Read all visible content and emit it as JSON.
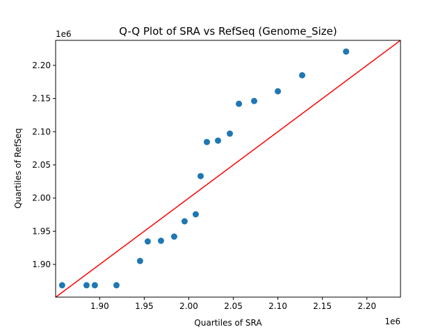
{
  "chart_data": {
    "type": "scatter",
    "title": "Q-Q Plot of SRA vs RefSeq (Genome_Size)",
    "xlabel": "Quartiles of SRA",
    "ylabel": "Quartiles of RefSeq",
    "x_offset_label": "1e6",
    "y_offset_label": "1e6",
    "xlim": [
      1850500,
      2237700
    ],
    "ylim": [
      1850700,
      2237700
    ],
    "x_ticks": [
      1900000,
      1950000,
      2000000,
      2050000,
      2100000,
      2150000,
      2200000
    ],
    "x_tick_labels": [
      "1.90",
      "1.95",
      "2.00",
      "2.05",
      "2.10",
      "2.15",
      "2.20"
    ],
    "y_ticks": [
      1900000,
      1950000,
      2000000,
      2050000,
      2100000,
      2150000,
      2200000
    ],
    "y_tick_labels": [
      "1.90",
      "1.95",
      "2.00",
      "2.05",
      "2.10",
      "2.15",
      "2.20"
    ],
    "grid": false,
    "point_color": "#1f77b4",
    "reference_line": {
      "type": "y=x",
      "color": "#ff0000"
    },
    "points": [
      {
        "x": 1857800,
        "y": 1868600
      },
      {
        "x": 1885200,
        "y": 1868600
      },
      {
        "x": 1894500,
        "y": 1868600
      },
      {
        "x": 1918800,
        "y": 1868600
      },
      {
        "x": 1945300,
        "y": 1905200
      },
      {
        "x": 1953900,
        "y": 1934600
      },
      {
        "x": 1968800,
        "y": 1935600
      },
      {
        "x": 1983600,
        "y": 1941900
      },
      {
        "x": 1995300,
        "y": 1965000
      },
      {
        "x": 2007800,
        "y": 1975500
      },
      {
        "x": 2013300,
        "y": 2033100
      },
      {
        "x": 2020300,
        "y": 2084500
      },
      {
        "x": 2032800,
        "y": 2086600
      },
      {
        "x": 2046100,
        "y": 2097100
      },
      {
        "x": 2056300,
        "y": 2142100
      },
      {
        "x": 2073400,
        "y": 2146300
      },
      {
        "x": 2100000,
        "y": 2161000
      },
      {
        "x": 2127300,
        "y": 2185100
      },
      {
        "x": 2176600,
        "y": 2220800
      }
    ]
  }
}
